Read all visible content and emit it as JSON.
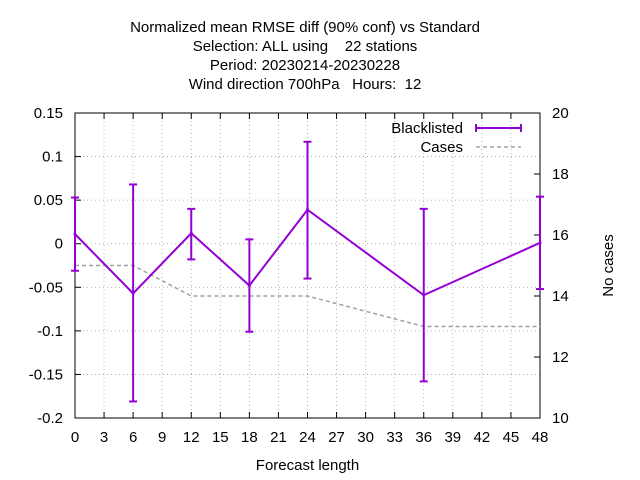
{
  "chart_data": {
    "type": "line",
    "title_lines": [
      "Normalized mean RMSE diff (90% conf) vs Standard",
      "Selection: ALL using    22 stations",
      "Period: 20230214-20230228",
      "Wind direction 700hPa   Hours:  12"
    ],
    "xlabel": "Forecast length",
    "ylabel": "",
    "y2label": "No cases",
    "xlim": [
      0,
      48
    ],
    "ylim": [
      -0.2,
      0.15
    ],
    "y2lim": [
      10,
      20
    ],
    "xticks": [
      "0",
      "3",
      "6",
      "9",
      "12",
      "15",
      "18",
      "21",
      "24",
      "27",
      "30",
      "33",
      "36",
      "39",
      "42",
      "45",
      "48"
    ],
    "yticks": [
      "0.15",
      "0.1",
      "0.05",
      "0",
      "-0.05",
      "-0.1",
      "-0.15",
      "-0.2"
    ],
    "y2ticks": [
      "20",
      "18",
      "16",
      "14",
      "12",
      "10"
    ],
    "grid": true,
    "legend_position": "top-right",
    "series": [
      {
        "name": "Blacklisted",
        "color": "#9400d3",
        "style": "line-errorbars",
        "x": [
          0,
          6,
          12,
          18,
          24,
          36,
          48
        ],
        "y": [
          0.011,
          -0.057,
          0.012,
          -0.048,
          0.039,
          -0.059,
          0.001
        ],
        "err_low": [
          -0.031,
          -0.181,
          -0.018,
          -0.101,
          -0.04,
          -0.158,
          -0.052
        ],
        "err_high": [
          0.053,
          0.068,
          0.04,
          0.005,
          0.117,
          0.04,
          0.054
        ]
      },
      {
        "name": "Cases",
        "color": "#a0a0a0",
        "style": "dashed",
        "axis": "y2",
        "x": [
          0,
          6,
          12,
          18,
          24,
          36,
          48
        ],
        "y": [
          15,
          15,
          14,
          14,
          14,
          13,
          13
        ]
      }
    ]
  }
}
